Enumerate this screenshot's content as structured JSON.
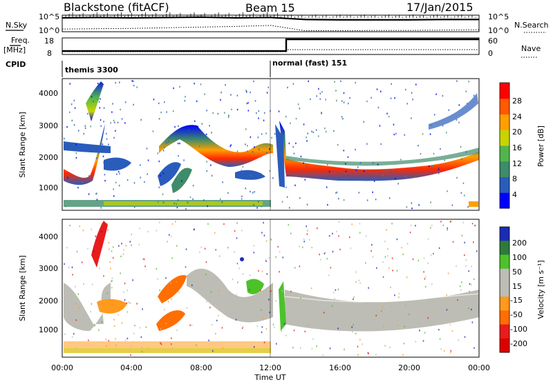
{
  "header": {
    "station": "Blackstone (fitACF)",
    "beam": "Beam 15",
    "date": "17/Jan/2015"
  },
  "top_panels": {
    "nsky_label": "N.Sky",
    "nsky_ticks": [
      "10^5",
      "10^0"
    ],
    "nsearch_label": "N.Search",
    "nsearch_ticks": [
      "10^5",
      "10^0"
    ],
    "freq_label": "Freq.",
    "freq_unit": "[MHz]",
    "freq_ticks": [
      "18",
      "8"
    ],
    "nave_label": "Nave",
    "nave_ticks": [
      "60",
      "0"
    ],
    "cpid_label": "CPID",
    "cpid_segments": [
      "themis 3300",
      "normal (fast) 151"
    ]
  },
  "x_axis": {
    "label": "Time UT",
    "ticks": [
      "00:00",
      "04:00",
      "08:00",
      "12:00",
      "16:00",
      "20:00",
      "00:00"
    ]
  },
  "power_panel": {
    "ylabel": "Slant Range [km]",
    "yticks": [
      "4000",
      "3000",
      "2000",
      "1000"
    ],
    "colorbar_label": "Power [dB]",
    "colorbar_ticks": [
      "28",
      "24",
      "20",
      "16",
      "12",
      "8",
      "4"
    ]
  },
  "velocity_panel": {
    "ylabel": "Slant Range [km]",
    "yticks": [
      "4000",
      "3000",
      "2000",
      "1000"
    ],
    "colorbar_label": "Velocity [m s⁻¹]",
    "colorbar_ticks": [
      "200",
      "100",
      "50",
      "15",
      "-15",
      "-50",
      "-100",
      "-200"
    ]
  },
  "colors": {
    "power_scale": [
      "#0000ff",
      "#2a5cbb",
      "#3e8c6a",
      "#52b54c",
      "#c8d400",
      "#ff9f00",
      "#ff5a00",
      "#ff0000"
    ],
    "velocity_scale": [
      "#1a2cb4",
      "#2e7a3c",
      "#4cc22a",
      "#bdbdb5",
      "#bdbdb5",
      "#ff9a1e",
      "#ff6e00",
      "#e81c1c",
      "#dd0000"
    ],
    "ground_scatter": "#bdbdb5"
  },
  "chart_data": [
    {
      "type": "line",
      "title": "N.Sky / N.Search",
      "x": [
        "00:00",
        "02:00",
        "04:00",
        "06:00",
        "08:00",
        "10:00",
        "12:00",
        "14:00",
        "16:00",
        "18:00",
        "20:00",
        "22:00",
        "24:00"
      ],
      "series": [
        {
          "name": "N.Sky",
          "values": [
            4.2,
            4.3,
            4.2,
            4.3,
            4.4,
            4.2,
            4.3,
            3.7,
            3.6,
            3.6,
            3.6,
            3.7,
            3.7
          ]
        },
        {
          "name": "N.Search",
          "values": [
            0.8,
            0.9,
            1.0,
            1.2,
            1.4,
            1.6,
            1.9,
            0.3,
            0.3,
            0.4,
            0.4,
            0.5,
            0.6
          ]
        }
      ]
    },
    {
      "type": "line",
      "title": "Freq. / Nave",
      "x": [
        "00:00",
        "13:00",
        "13:00",
        "24:00"
      ],
      "series": [
        {
          "name": "Freq. [MHz]",
          "values": [
            10.5,
            10.5,
            18,
            18
          ]
        },
        {
          "name": "Nave",
          "values": [
            10,
            10,
            27,
            27
          ]
        }
      ]
    },
    {
      "type": "heatmap",
      "title": "Power [dB]",
      "xlabel": "Time UT",
      "ylabel": "Slant Range [km]",
      "xlim": [
        0,
        24
      ],
      "ylim": [
        200,
        4500
      ],
      "features": [
        {
          "t": [
            0.2,
            1.0,
            2.0,
            3.0,
            4.0
          ],
          "range": [
            1900,
            1200,
            1800,
            2100,
            2000
          ],
          "peak_dB": 24
        },
        {
          "t": [
            5.0,
            6.0,
            7.0,
            8.0,
            9.0,
            10.0,
            11.0
          ],
          "range": [
            2300,
            2000,
            2200,
            1800,
            1850,
            2100,
            2400
          ],
          "peak_dB": 20
        },
        {
          "t": [
            13.0,
            15.0,
            17.0,
            19.0,
            21.0,
            23.0,
            24.0
          ],
          "range": [
            1350,
            1300,
            1350,
            1500,
            1600,
            1850,
            1900
          ],
          "peak_dB": 28
        }
      ]
    },
    {
      "type": "heatmap",
      "title": "Velocity [m s⁻¹]",
      "xlabel": "Time UT",
      "ylabel": "Slant Range [km]",
      "xlim": [
        0,
        24
      ],
      "ylim": [
        200,
        4500
      ],
      "features": [
        {
          "t": [
            1.8,
            2.3
          ],
          "range": [
            2800,
            4300
          ],
          "velocity": -200
        },
        {
          "t": [
            2.6,
            3.6
          ],
          "range": [
            1400,
            1900
          ],
          "velocity": -50
        },
        {
          "t": [
            5.0,
            7.0
          ],
          "range": [
            1000,
            2500
          ],
          "velocity": -50
        },
        {
          "t": [
            9.5,
            10.5
          ],
          "range": [
            1800,
            2500
          ],
          "velocity": 50
        },
        {
          "t": [
            13.0,
            24.0
          ],
          "range": [
            1200,
            2100
          ],
          "velocity": 0
        }
      ]
    }
  ]
}
